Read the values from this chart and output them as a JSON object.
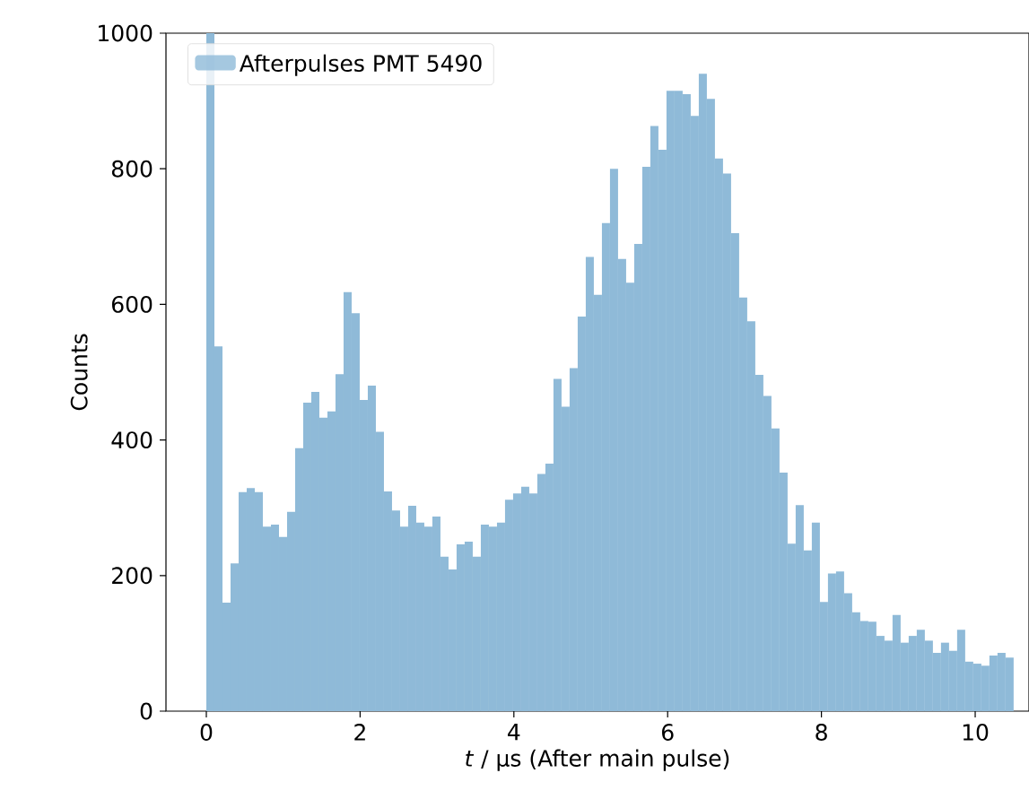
{
  "chart_data": {
    "type": "histogram",
    "xlabel": "*t* /  μs (After main pulse)",
    "ylabel": "Counts",
    "bins": [
      0,
      0.105,
      0.21,
      0.315,
      0.42,
      0.525,
      0.63,
      0.735,
      0.84,
      0.945,
      1.05,
      1.155,
      1.26,
      1.365,
      1.47,
      1.575,
      1.68,
      1.785,
      1.89,
      1.995,
      2.1,
      2.205,
      2.31,
      2.415,
      2.52,
      2.625,
      2.73,
      2.835,
      2.94,
      3.045,
      3.15,
      3.255,
      3.36,
      3.465,
      3.57,
      3.675,
      3.78,
      3.885,
      3.99,
      4.095,
      4.2,
      4.305,
      4.41,
      4.515,
      4.62,
      4.725,
      4.83,
      4.935,
      5.04,
      5.145,
      5.25,
      5.355,
      5.46,
      5.565,
      5.67,
      5.775,
      5.88,
      5.985,
      6.09,
      6.195,
      6.3,
      6.405,
      6.51,
      6.615,
      6.72,
      6.825,
      6.93,
      7.035,
      7.14,
      7.245,
      7.35,
      7.455,
      7.56,
      7.665,
      7.77,
      7.875,
      7.98,
      8.085,
      8.19,
      8.295,
      8.4,
      8.505,
      8.61,
      8.715,
      8.82,
      8.925,
      9.03,
      9.135,
      9.24,
      9.345,
      9.45,
      9.555,
      9.66,
      9.765,
      9.87,
      9.975,
      10.08,
      10.185,
      10.29,
      10.395,
      10.5
    ],
    "series": [
      {
        "name": "Afterpulses PMT 5490",
        "color": "#8fbad8",
        "values": [
          1000,
          538,
          160,
          218,
          323,
          329,
          323,
          272,
          275,
          257,
          294,
          388,
          455,
          471,
          433,
          442,
          497,
          618,
          587,
          459,
          480,
          412,
          324,
          296,
          272,
          303,
          278,
          272,
          287,
          228,
          209,
          246,
          250,
          228,
          275,
          272,
          278,
          312,
          321,
          331,
          321,
          350,
          365,
          490,
          449,
          506,
          582,
          670,
          614,
          720,
          800,
          667,
          632,
          689,
          803,
          863,
          828,
          915,
          915,
          910,
          878,
          940,
          903,
          815,
          793,
          705,
          610,
          575,
          496,
          465,
          417,
          352,
          247,
          304,
          237,
          278,
          161,
          203,
          206,
          174,
          146,
          133,
          132,
          111,
          104,
          142,
          101,
          111,
          120,
          104,
          86,
          101,
          89,
          120,
          73,
          70,
          67,
          82,
          86,
          79
        ]
      }
    ],
    "xlim": [
      -0.525,
      10.7
    ],
    "ylim": [
      0,
      1000
    ],
    "xticks": [
      0,
      2,
      4,
      6,
      8,
      10
    ],
    "yticks": [
      0,
      200,
      400,
      600,
      800,
      1000
    ],
    "legend": "top left"
  }
}
